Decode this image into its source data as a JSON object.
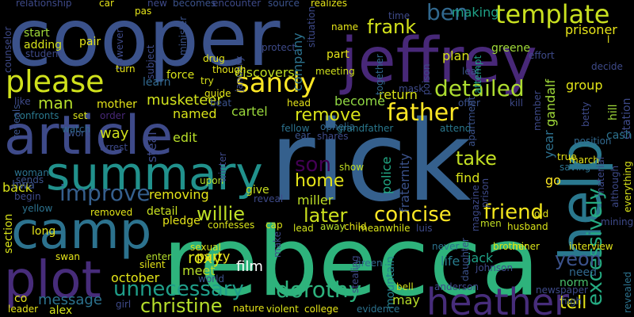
{
  "words": [
    {
      "text": "rick",
      "color": "#35608d"
    },
    {
      "text": "rebecca",
      "color": "#2eb37c"
    },
    {
      "text": "cooper",
      "color": "#3b528b"
    },
    {
      "text": "jeffrey",
      "color": "#482878"
    },
    {
      "text": "article",
      "color": "#3e4a89"
    },
    {
      "text": "camp",
      "color": "#2c728e"
    },
    {
      "text": "summary",
      "color": "#21918c"
    },
    {
      "text": "plot",
      "color": "#472c7a"
    },
    {
      "text": "help",
      "color": "#2a788e"
    },
    {
      "text": "heather",
      "color": "#472d7b"
    },
    {
      "text": "template",
      "color": "#c8e020"
    },
    {
      "text": "please",
      "color": "#d0e11c"
    },
    {
      "text": "sandy",
      "color": "#fde725"
    },
    {
      "text": "father",
      "color": "#fde725"
    },
    {
      "text": "detailed",
      "color": "#addc30"
    },
    {
      "text": "improve",
      "color": "#355f8d"
    },
    {
      "text": "unnecessary",
      "color": "#1f9e89"
    },
    {
      "text": "dorothy",
      "color": "#2db27d"
    },
    {
      "text": "excessively",
      "color": "#25ab82"
    },
    {
      "text": "christine",
      "color": "#b5de2b"
    },
    {
      "text": "concise",
      "color": "#fde725"
    },
    {
      "text": "friend",
      "color": "#f1e51d"
    },
    {
      "text": "later",
      "color": "#cde11d"
    },
    {
      "text": "willie",
      "color": "#bddf26"
    },
    {
      "text": "frank",
      "color": "#d2e21b"
    },
    {
      "text": "remove",
      "color": "#d8e219"
    },
    {
      "text": "ben",
      "color": "#31688e"
    },
    {
      "text": "son",
      "color": "#440154"
    },
    {
      "text": "home",
      "color": "#e5e419"
    },
    {
      "text": "take",
      "color": "#c2df23"
    },
    {
      "text": "yeon",
      "color": "#3b528b"
    },
    {
      "text": "tell",
      "color": "#e5e419"
    },
    {
      "text": "musketeer",
      "color": "#d0e11c"
    },
    {
      "text": "making",
      "color": "#1fa187"
    },
    {
      "text": "greene",
      "color": "#a0da39"
    },
    {
      "text": "prisoner",
      "color": "#e7e419"
    },
    {
      "text": "man",
      "color": "#b5de2b"
    },
    {
      "text": "mother",
      "color": "#e5e419"
    },
    {
      "text": "named",
      "color": "#d8e219"
    },
    {
      "text": "edit",
      "color": "#b8de29"
    },
    {
      "text": "way",
      "color": "#d0e11c"
    },
    {
      "text": "cartel",
      "color": "#9bd93c"
    },
    {
      "text": "become",
      "color": "#90d743"
    },
    {
      "text": "discovers",
      "color": "#c2df23"
    },
    {
      "text": "learn",
      "color": "#31688e"
    },
    {
      "text": "group",
      "color": "#e2e418"
    },
    {
      "text": "gandalf",
      "color": "#a0da39"
    },
    {
      "text": "fraternity",
      "color": "#3b528b"
    },
    {
      "text": "police",
      "color": "#22a884"
    },
    {
      "text": "find",
      "color": "#d8e219"
    },
    {
      "text": "go",
      "color": "#fde725"
    },
    {
      "text": "need",
      "color": "#31688e"
    },
    {
      "text": "norm",
      "color": "#4ac16d"
    },
    {
      "text": "back",
      "color": "#d8e219"
    },
    {
      "text": "improve",
      "color": "#6ece58"
    },
    {
      "text": "party",
      "color": "#f1e51d"
    },
    {
      "text": "give",
      "color": "#c8e020"
    },
    {
      "text": "detail",
      "color": "#c8e020"
    },
    {
      "text": "removing",
      "color": "#e5e419"
    },
    {
      "text": "miller",
      "color": "#bddf26"
    },
    {
      "text": "roxy",
      "color": "#dde318"
    },
    {
      "text": "meet",
      "color": "#b8de29"
    },
    {
      "text": "film",
      "color": "#ffffff"
    },
    {
      "text": "october",
      "color": "#e2e418"
    },
    {
      "text": "message",
      "color": "#2c728e"
    },
    {
      "text": "jack",
      "color": "#1fa187"
    },
    {
      "text": "life",
      "color": "#287d8e"
    },
    {
      "text": "mountain",
      "color": "#26828e"
    },
    {
      "text": "section",
      "color": "#d8e219"
    },
    {
      "text": "company",
      "color": "#2c728e"
    },
    {
      "text": "steal",
      "color": "#3e4a89"
    },
    {
      "text": "year",
      "color": "#2d708e"
    },
    {
      "text": "return",
      "color": "#d8e219"
    },
    {
      "text": "start",
      "color": "#a0da39"
    },
    {
      "text": "adding",
      "color": "#d5e21a"
    },
    {
      "text": "plan",
      "color": "#d8e219"
    },
    {
      "text": "part",
      "color": "#e5e419"
    },
    {
      "text": "hwa",
      "color": "#3b528b"
    },
    {
      "text": "long",
      "color": "#e5e419"
    },
    {
      "text": "alex",
      "color": "#d2e21b"
    },
    {
      "text": "co",
      "color": "#e5e419"
    },
    {
      "text": "may",
      "color": "#b8de29"
    },
    {
      "text": "minister",
      "color": "#3b528b"
    },
    {
      "text": "drug",
      "color": "#e2e418"
    },
    {
      "text": "force",
      "color": "#d8e219"
    },
    {
      "text": "guide",
      "color": "#e2e418"
    },
    {
      "text": "try",
      "color": "#d8e219"
    },
    {
      "text": "meeting",
      "color": "#d0e11c"
    },
    {
      "text": "together",
      "color": "#31688e"
    },
    {
      "text": "mask",
      "color": "#3e4a89"
    },
    {
      "text": "gandalf",
      "color": "#a0da39"
    },
    {
      "text": "order",
      "color": "#482878"
    },
    {
      "text": "set",
      "color": "#d8e219"
    },
    {
      "text": "confronts",
      "color": "#2a788e"
    },
    {
      "text": "work",
      "color": "#3b528b"
    },
    {
      "text": "reveals",
      "color": "#3b528b"
    },
    {
      "text": "watch",
      "color": "#31688e"
    },
    {
      "text": "arrest",
      "color": "#3e4a89"
    },
    {
      "text": "woman",
      "color": "#2c728e"
    },
    {
      "text": "sends",
      "color": "#3b528b"
    },
    {
      "text": "begin",
      "color": "#3e4a89"
    },
    {
      "text": "yellow",
      "color": "#2c728e"
    },
    {
      "text": "removed",
      "color": "#e2e418"
    },
    {
      "text": "upon",
      "color": "#b5de2b"
    },
    {
      "text": "pledge",
      "color": "#e5e419"
    },
    {
      "text": "confesses",
      "color": "#d8e219"
    },
    {
      "text": "cap",
      "color": "#dde318"
    },
    {
      "text": "lead",
      "color": "#d0e11c"
    },
    {
      "text": "away",
      "color": "#b5de2b"
    },
    {
      "text": "child",
      "color": "#e5e419"
    },
    {
      "text": "men",
      "color": "#c2df23"
    },
    {
      "text": "husband",
      "color": "#d8e219"
    },
    {
      "text": "brother",
      "color": "#d8e219"
    },
    {
      "text": "miner",
      "color": "#d8e219"
    },
    {
      "text": "interview",
      "color": "#e2e418"
    },
    {
      "text": "swan",
      "color": "#e5e419"
    },
    {
      "text": "enter",
      "color": "#b5de2b"
    },
    {
      "text": "silent",
      "color": "#e5e419"
    },
    {
      "text": "sexual",
      "color": "#d8e219"
    },
    {
      "text": "world",
      "color": "#3b528b"
    },
    {
      "text": "girl",
      "color": "#3e4a89"
    },
    {
      "text": "leader",
      "color": "#e5e419"
    },
    {
      "text": "nature",
      "color": "#e5e419"
    },
    {
      "text": "violent",
      "color": "#d8e219"
    },
    {
      "text": "college",
      "color": "#e5e419"
    },
    {
      "text": "evidence",
      "color": "#2c728e"
    },
    {
      "text": "never",
      "color": "#2c728e"
    },
    {
      "text": "anderson",
      "color": "#3e4a89"
    },
    {
      "text": "daughter",
      "color": "#3b528b"
    },
    {
      "text": "green",
      "color": "#31688e"
    },
    {
      "text": "johnson",
      "color": "#3e4a89"
    },
    {
      "text": "luis",
      "color": "#3e4a89"
    },
    {
      "text": "meanwhile",
      "color": "#d8e219"
    },
    {
      "text": "make",
      "color": "#3e4a89"
    },
    {
      "text": "stealing",
      "color": "#3e4a89"
    },
    {
      "text": "bell",
      "color": "#d0e11c"
    },
    {
      "text": "high",
      "color": "#3b528b"
    },
    {
      "text": "newspaper",
      "color": "#3e4a89"
    },
    {
      "text": "revealed",
      "color": "#2c728e"
    },
    {
      "text": "ophelia",
      "color": "#31688e"
    },
    {
      "text": "shares",
      "color": "#3e4a89"
    },
    {
      "text": "show",
      "color": "#c2df23"
    },
    {
      "text": "ear",
      "color": "#3b528b"
    },
    {
      "text": "fellow",
      "color": "#2c728e"
    },
    {
      "text": "grandfather",
      "color": "#2a788e"
    },
    {
      "text": "attend",
      "color": "#2a788e"
    },
    {
      "text": "head",
      "color": "#e5e419"
    },
    {
      "text": "beat",
      "color": "#3b528b"
    },
    {
      "text": "offer",
      "color": "#3b528b"
    },
    {
      "text": "kill",
      "color": "#3e4a89"
    },
    {
      "text": "poison",
      "color": "#3e4a89"
    },
    {
      "text": "leaf",
      "color": "#3b528b"
    },
    {
      "text": "attempt",
      "color": "#1fa187"
    },
    {
      "text": "effort",
      "color": "#3e4a89"
    },
    {
      "text": "decide",
      "color": "#3e4a89"
    },
    {
      "text": "hill",
      "color": "#a0da39"
    },
    {
      "text": "citation",
      "color": "#3e4a89"
    },
    {
      "text": "cash",
      "color": "#2c728e"
    },
    {
      "text": "march",
      "color": "#e5e419"
    },
    {
      "text": "material",
      "color": "#3e4a89"
    },
    {
      "text": "although",
      "color": "#3e4a89"
    },
    {
      "text": "everything",
      "color": "#d8e219"
    },
    {
      "text": "saving",
      "color": "#2c728e"
    },
    {
      "text": "position",
      "color": "#31688e"
    },
    {
      "text": "true",
      "color": "#e5e419"
    },
    {
      "text": "member",
      "color": "#3e4a89"
    },
    {
      "text": "apartment",
      "color": "#3b528b"
    },
    {
      "text": "magazine",
      "color": "#3e4a89"
    },
    {
      "text": "prison",
      "color": "#3e4a89"
    },
    {
      "text": "old",
      "color": "#e5e419"
    },
    {
      "text": "mining",
      "color": "#3e4a89"
    },
    {
      "text": "betty",
      "color": "#3e4a89"
    },
    {
      "text": "relationship",
      "color": "#3e4a89"
    },
    {
      "text": "car",
      "color": "#e5e419"
    },
    {
      "text": "pas",
      "color": "#e5e419"
    },
    {
      "text": "new",
      "color": "#3e4a89"
    },
    {
      "text": "becomes",
      "color": "#3b528b"
    },
    {
      "text": "encounter",
      "color": "#3e4a89"
    },
    {
      "text": "source",
      "color": "#3b528b"
    },
    {
      "text": "realizes",
      "color": "#e5e419"
    },
    {
      "text": "time",
      "color": "#3e4a89"
    },
    {
      "text": "situation",
      "color": "#3e4a89"
    },
    {
      "text": "counselor",
      "color": "#3e4a89"
    },
    {
      "text": "student",
      "color": "#3e4a89"
    },
    {
      "text": "pair",
      "color": "#e5e419"
    },
    {
      "text": "however",
      "color": "#3e4a89"
    },
    {
      "text": "subject",
      "color": "#3e4a89"
    },
    {
      "text": "january",
      "color": "#3e4a89"
    },
    {
      "text": "protect",
      "color": "#3e4a89"
    },
    {
      "text": "name",
      "color": "#e5e419"
    },
    {
      "text": "turn",
      "color": "#e5e419"
    },
    {
      "text": "though",
      "color": "#e5e419"
    },
    {
      "text": "like",
      "color": "#3e4a89"
    },
    {
      "text": "winter",
      "color": "#3e4a89"
    },
    {
      "text": "reveal",
      "color": "#3e4a89"
    },
    {
      "text": "l",
      "color": "#e5e419"
    }
  ]
}
